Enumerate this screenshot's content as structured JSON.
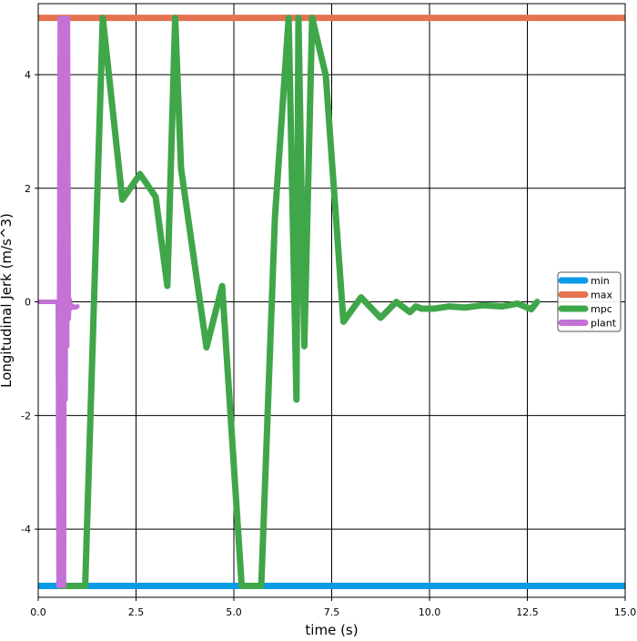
{
  "chart_data": {
    "type": "line",
    "title": "",
    "xlabel": "time (s)",
    "ylabel": "Longitudinal Jerk (m/s^3)",
    "xlim": [
      0.0,
      15.0
    ],
    "ylim": [
      -5.2,
      5.25
    ],
    "xticks": [
      0.0,
      2.5,
      5.0,
      7.5,
      10.0,
      12.5,
      15.0
    ],
    "xtick_labels": [
      "0.0",
      "2.5",
      "5.0",
      "7.5",
      "10.0",
      "12.5",
      "15.0"
    ],
    "yticks": [
      -4,
      -2,
      0,
      2,
      4
    ],
    "ytick_labels": [
      "-4",
      "-2",
      "0",
      "2",
      "4"
    ],
    "grid": true,
    "legend_position": "center-right",
    "series": [
      {
        "name": "min",
        "color": "#0a9be8",
        "x": [
          0.0,
          15.0
        ],
        "y": [
          -5.0,
          -5.0
        ]
      },
      {
        "name": "max",
        "color": "#e5734f",
        "x": [
          0.0,
          15.0
        ],
        "y": [
          5.0,
          5.0
        ]
      },
      {
        "name": "mpc",
        "color": "#3fa64a",
        "x": [
          0.55,
          1.2,
          1.65,
          2.15,
          2.6,
          3.0,
          3.3,
          3.5,
          3.65,
          4.3,
          4.7,
          5.2,
          5.7,
          6.05,
          6.4,
          6.6,
          6.65,
          6.8,
          7.0,
          7.35,
          7.8,
          8.25,
          8.75,
          9.15,
          9.5,
          9.65,
          9.8,
          10.1,
          10.5,
          10.9,
          11.35,
          11.85,
          12.25,
          12.6,
          12.75
        ],
        "y": [
          -5.0,
          -5.0,
          5.0,
          1.8,
          2.25,
          1.85,
          0.28,
          5.0,
          2.35,
          -0.8,
          0.28,
          -5.0,
          -5.0,
          1.5,
          5.0,
          -1.72,
          5.0,
          -0.78,
          5.0,
          3.98,
          -0.35,
          0.08,
          -0.28,
          0.0,
          -0.18,
          -0.08,
          -0.12,
          -0.12,
          -0.08,
          -0.1,
          -0.06,
          -0.08,
          -0.03,
          -0.13,
          0.0
        ]
      },
      {
        "name": "plant",
        "color": "#c472d6",
        "x": [
          0.0,
          0.5,
          0.52,
          0.55,
          0.58,
          0.6,
          0.63,
          0.66,
          0.68,
          0.7,
          0.72,
          0.74,
          0.76,
          0.78,
          0.8,
          0.82,
          0.84,
          0.86,
          0.88,
          0.9,
          0.95,
          1.0
        ],
        "y": [
          0.0,
          0.0,
          -5.0,
          5.0,
          -5.0,
          5.0,
          -0.8,
          -5.0,
          5.0,
          -1.72,
          5.0,
          -0.78,
          5.0,
          -0.3,
          0.05,
          -0.12,
          -0.05,
          -0.08,
          -0.1,
          -0.08,
          -0.1,
          -0.08
        ]
      }
    ]
  }
}
